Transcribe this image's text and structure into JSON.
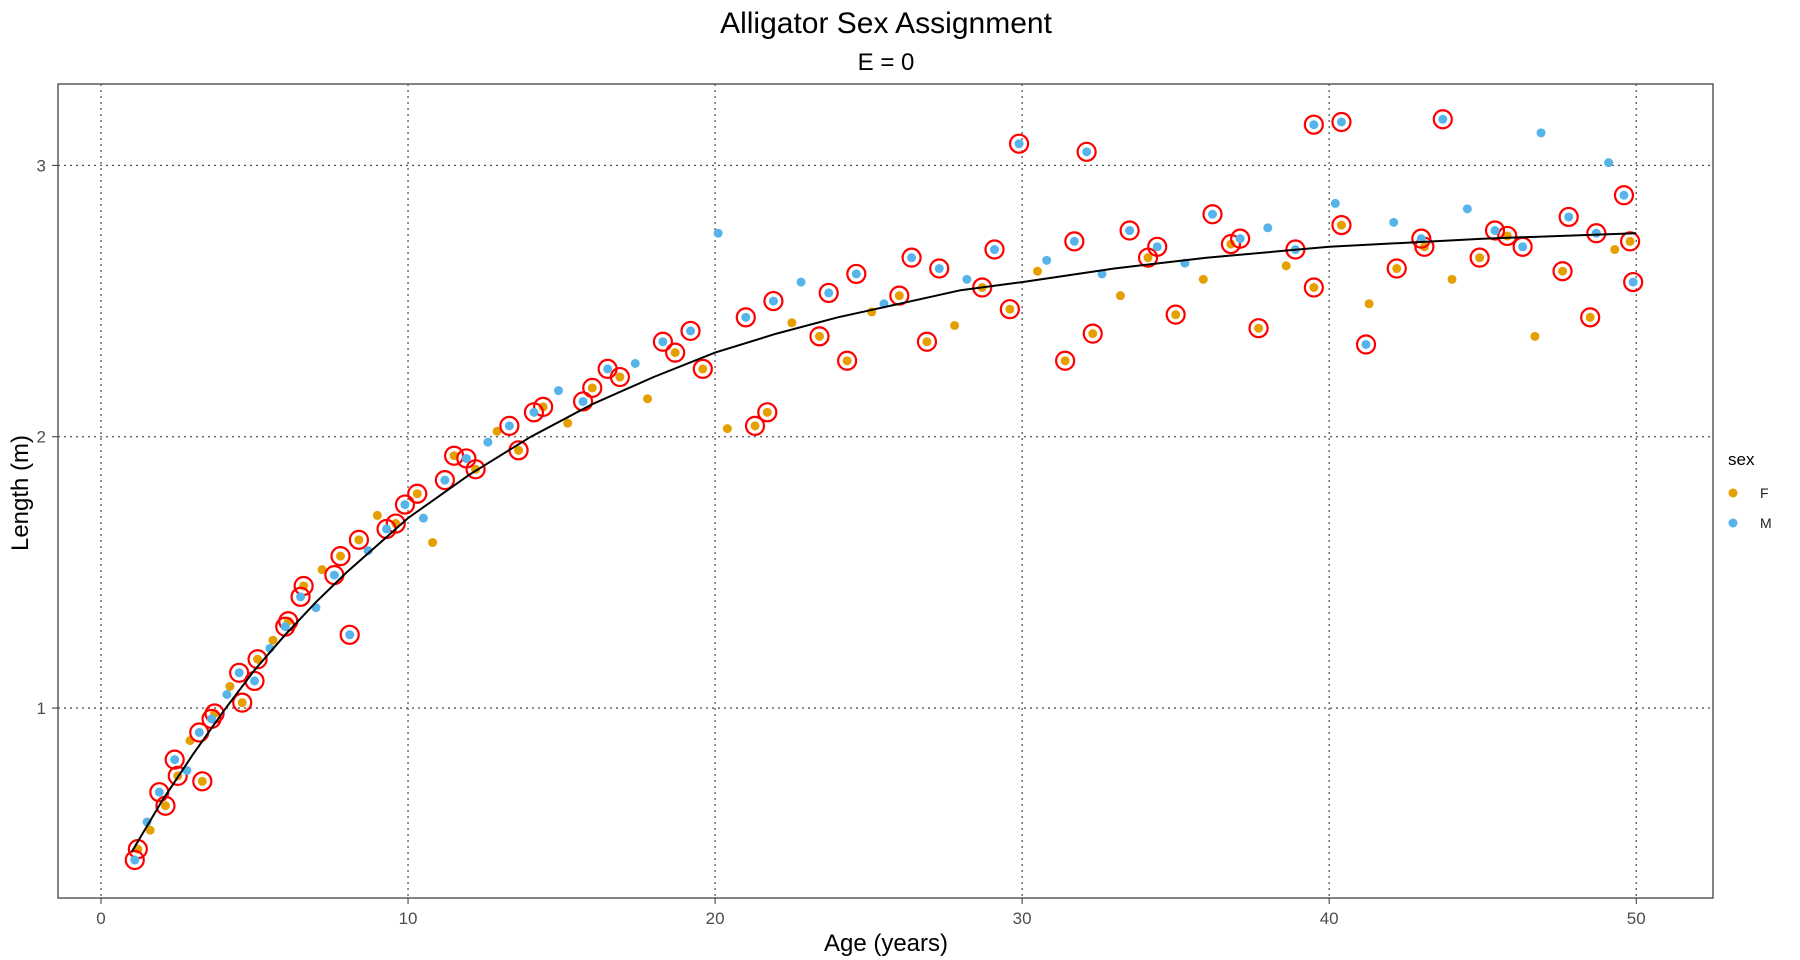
{
  "chart_data": {
    "type": "scatter",
    "title": "Alligator Sex Assignment",
    "subtitle": "E = 0",
    "xlabel": "Age (years)",
    "ylabel": "Length (m)",
    "xlim": [
      -1.4,
      52.5
    ],
    "ylim": [
      0.3,
      3.3
    ],
    "x_ticks": [
      0,
      10,
      20,
      30,
      40,
      50
    ],
    "y_ticks": [
      1,
      2,
      3
    ],
    "grid": true,
    "grid_style": "dotted",
    "legend": {
      "title": "sex",
      "position": "right",
      "entries": [
        {
          "label": "F",
          "color": "#E69F00"
        },
        {
          "label": "M",
          "color": "#56B4E9"
        }
      ]
    },
    "highlight_color": "#FF0000",
    "fit_line_color": "#000000",
    "fit_curve": {
      "x": [
        1,
        2,
        3,
        4,
        5,
        6,
        7,
        8,
        9,
        10,
        12,
        14,
        16,
        18,
        20,
        22,
        24,
        26,
        28,
        30,
        33,
        36,
        40,
        45,
        50
      ],
      "y": [
        0.47,
        0.66,
        0.83,
        0.99,
        1.14,
        1.27,
        1.39,
        1.5,
        1.6,
        1.7,
        1.86,
        2.0,
        2.12,
        2.22,
        2.31,
        2.38,
        2.44,
        2.49,
        2.54,
        2.57,
        2.62,
        2.66,
        2.7,
        2.73,
        2.75
      ]
    },
    "series": [
      {
        "name": "F",
        "color": "#E69F00",
        "points": [
          [
            1.2,
            0.48
          ],
          [
            1.6,
            0.55
          ],
          [
            2.1,
            0.64
          ],
          [
            2.5,
            0.75
          ],
          [
            2.9,
            0.88
          ],
          [
            3.3,
            0.73
          ],
          [
            3.7,
            0.98
          ],
          [
            4.2,
            1.08
          ],
          [
            4.6,
            1.02
          ],
          [
            5.1,
            1.18
          ],
          [
            5.6,
            1.25
          ],
          [
            6.1,
            1.32
          ],
          [
            6.6,
            1.45
          ],
          [
            7.2,
            1.51
          ],
          [
            7.8,
            1.56
          ],
          [
            8.4,
            1.62
          ],
          [
            9.0,
            1.71
          ],
          [
            9.6,
            1.68
          ],
          [
            10.3,
            1.79
          ],
          [
            10.8,
            1.61
          ],
          [
            11.5,
            1.93
          ],
          [
            12.2,
            1.88
          ],
          [
            12.9,
            2.02
          ],
          [
            13.6,
            1.95
          ],
          [
            14.4,
            2.11
          ],
          [
            15.2,
            2.05
          ],
          [
            16.0,
            2.18
          ],
          [
            16.9,
            2.22
          ],
          [
            17.8,
            2.14
          ],
          [
            18.7,
            2.31
          ],
          [
            19.6,
            2.25
          ],
          [
            20.4,
            2.03
          ],
          [
            21.3,
            2.04
          ],
          [
            21.7,
            2.09
          ],
          [
            22.5,
            2.42
          ],
          [
            23.4,
            2.37
          ],
          [
            24.3,
            2.28
          ],
          [
            25.1,
            2.46
          ],
          [
            26.0,
            2.52
          ],
          [
            26.9,
            2.35
          ],
          [
            27.8,
            2.41
          ],
          [
            28.7,
            2.55
          ],
          [
            29.6,
            2.47
          ],
          [
            30.5,
            2.61
          ],
          [
            31.4,
            2.28
          ],
          [
            32.3,
            2.38
          ],
          [
            33.2,
            2.52
          ],
          [
            34.1,
            2.66
          ],
          [
            35.0,
            2.45
          ],
          [
            35.9,
            2.58
          ],
          [
            36.8,
            2.71
          ],
          [
            37.7,
            2.4
          ],
          [
            38.6,
            2.63
          ],
          [
            39.5,
            2.55
          ],
          [
            40.4,
            2.78
          ],
          [
            41.3,
            2.49
          ],
          [
            42.2,
            2.62
          ],
          [
            43.1,
            2.7
          ],
          [
            44.0,
            2.58
          ],
          [
            44.9,
            2.66
          ],
          [
            45.8,
            2.74
          ],
          [
            46.7,
            2.37
          ],
          [
            47.6,
            2.61
          ],
          [
            48.5,
            2.44
          ],
          [
            49.3,
            2.69
          ],
          [
            49.8,
            2.72
          ]
        ]
      },
      {
        "name": "M",
        "color": "#56B4E9",
        "points": [
          [
            1.1,
            0.44
          ],
          [
            1.5,
            0.58
          ],
          [
            1.9,
            0.69
          ],
          [
            2.4,
            0.81
          ],
          [
            2.8,
            0.77
          ],
          [
            3.2,
            0.91
          ],
          [
            3.6,
            0.96
          ],
          [
            4.1,
            1.05
          ],
          [
            4.5,
            1.13
          ],
          [
            5.0,
            1.1
          ],
          [
            5.5,
            1.22
          ],
          [
            6.0,
            1.3
          ],
          [
            6.5,
            1.41
          ],
          [
            7.0,
            1.37
          ],
          [
            7.6,
            1.49
          ],
          [
            8.1,
            1.27
          ],
          [
            8.7,
            1.58
          ],
          [
            9.3,
            1.66
          ],
          [
            9.9,
            1.75
          ],
          [
            10.5,
            1.7
          ],
          [
            11.2,
            1.84
          ],
          [
            11.9,
            1.92
          ],
          [
            12.6,
            1.98
          ],
          [
            13.3,
            2.04
          ],
          [
            14.1,
            2.09
          ],
          [
            14.9,
            2.17
          ],
          [
            15.7,
            2.13
          ],
          [
            16.5,
            2.25
          ],
          [
            17.4,
            2.27
          ],
          [
            18.3,
            2.35
          ],
          [
            19.2,
            2.39
          ],
          [
            20.1,
            2.75
          ],
          [
            21.0,
            2.44
          ],
          [
            21.9,
            2.5
          ],
          [
            22.8,
            2.57
          ],
          [
            23.7,
            2.53
          ],
          [
            24.6,
            2.6
          ],
          [
            25.5,
            2.49
          ],
          [
            26.4,
            2.66
          ],
          [
            27.3,
            2.62
          ],
          [
            28.2,
            2.58
          ],
          [
            29.1,
            2.69
          ],
          [
            29.9,
            3.08
          ],
          [
            30.8,
            2.65
          ],
          [
            31.7,
            2.72
          ],
          [
            32.1,
            3.05
          ],
          [
            32.6,
            2.6
          ],
          [
            33.5,
            2.76
          ],
          [
            34.4,
            2.7
          ],
          [
            35.3,
            2.64
          ],
          [
            36.2,
            2.82
          ],
          [
            37.1,
            2.73
          ],
          [
            38.0,
            2.77
          ],
          [
            38.9,
            2.69
          ],
          [
            39.5,
            3.15
          ],
          [
            40.2,
            2.86
          ],
          [
            40.4,
            3.16
          ],
          [
            41.2,
            2.34
          ],
          [
            42.1,
            2.79
          ],
          [
            43.0,
            2.73
          ],
          [
            43.7,
            3.17
          ],
          [
            44.5,
            2.84
          ],
          [
            45.4,
            2.76
          ],
          [
            46.3,
            2.7
          ],
          [
            46.9,
            3.12
          ],
          [
            47.8,
            2.81
          ],
          [
            48.7,
            2.75
          ],
          [
            49.1,
            3.01
          ],
          [
            49.6,
            2.89
          ],
          [
            49.9,
            2.57
          ]
        ]
      }
    ]
  }
}
